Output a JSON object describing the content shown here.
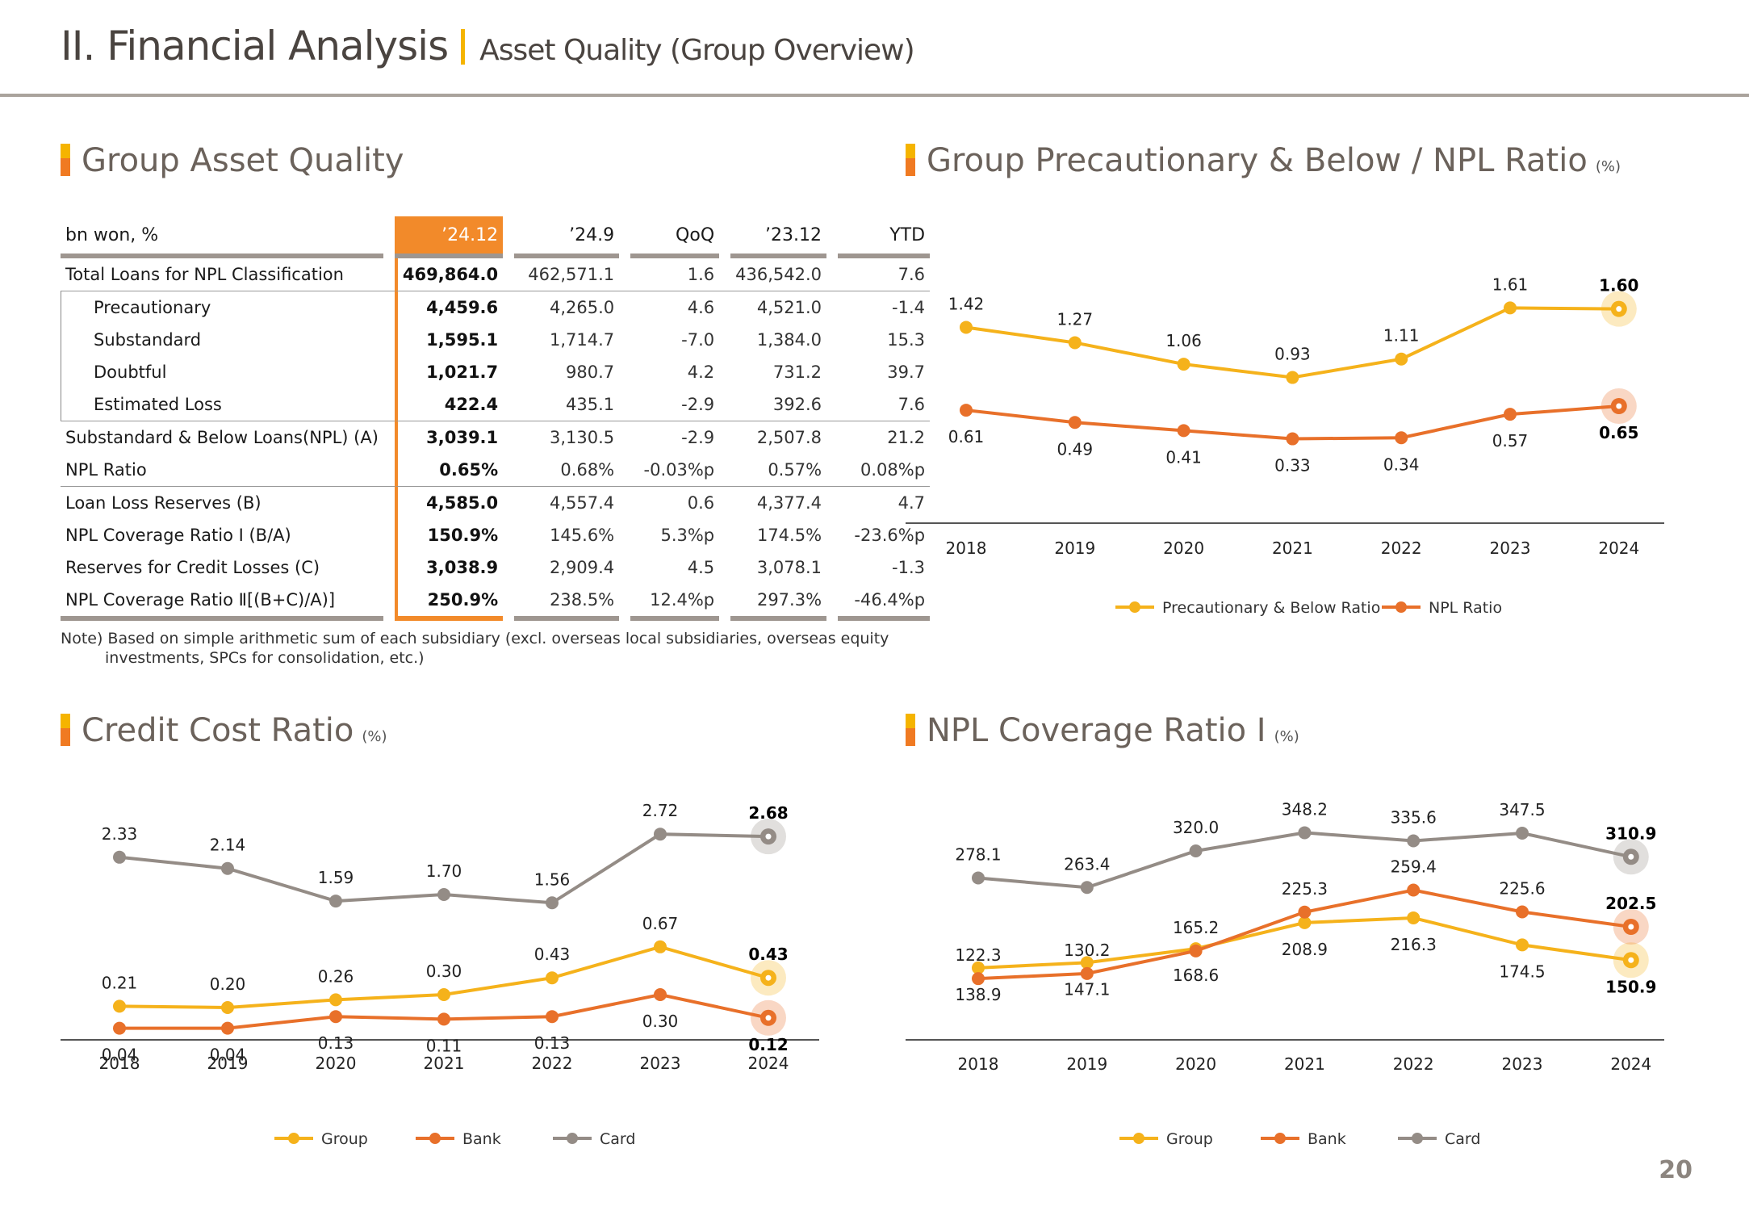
{
  "header": {
    "title": "II. Financial Analysis",
    "subtitle": "Asset Quality (Group Overview)"
  },
  "sections": {
    "asset_quality": "Group Asset Quality",
    "prec_npl": "Group Precautionary & Below / NPL Ratio",
    "prec_npl_unit": "(%)",
    "credit_cost": "Credit Cost Ratio",
    "credit_cost_unit": "(%)",
    "npl_coverage": "NPL Coverage Ratio I",
    "npl_coverage_unit": "(%)"
  },
  "table": {
    "columns": [
      "bn won, %",
      "’24.12",
      "’24.9",
      "QoQ",
      "’23.12",
      "YTD"
    ],
    "rows": [
      {
        "label": "Total Loans for NPL Classification",
        "values": [
          "469,864.0",
          "462,571.1",
          "1.6",
          "436,542.0",
          "7.6"
        ]
      },
      {
        "label": "Precautionary",
        "values": [
          "4,459.6",
          "4,265.0",
          "4.6",
          "4,521.0",
          "-1.4"
        ]
      },
      {
        "label": "Substandard",
        "values": [
          "1,595.1",
          "1,714.7",
          "-7.0",
          "1,384.0",
          "15.3"
        ]
      },
      {
        "label": "Doubtful",
        "values": [
          "1,021.7",
          "980.7",
          "4.2",
          "731.2",
          "39.7"
        ]
      },
      {
        "label": "Estimated Loss",
        "values": [
          "422.4",
          "435.1",
          "-2.9",
          "392.6",
          "7.6"
        ]
      },
      {
        "label": "Substandard & Below Loans(NPL) (A)",
        "values": [
          "3,039.1",
          "3,130.5",
          "-2.9",
          "2,507.8",
          "21.2"
        ]
      },
      {
        "label": "NPL Ratio",
        "values": [
          "0.65%",
          "0.68%",
          "-0.03%p",
          "0.57%",
          "0.08%p"
        ]
      },
      {
        "label": "Loan Loss Reserves (B)",
        "values": [
          "4,585.0",
          "4,557.4",
          "0.6",
          "4,377.4",
          "4.7"
        ]
      },
      {
        "label": "NPL Coverage Ratio Ⅰ (B/A)",
        "values": [
          "150.9%",
          "145.6%",
          "5.3%p",
          "174.5%",
          "-23.6%p"
        ]
      },
      {
        "label": "Reserves for Credit Losses (C)",
        "values": [
          "3,038.9",
          "2,909.4",
          "4.5",
          "3,078.1",
          "-1.3"
        ]
      },
      {
        "label": "NPL Coverage Ratio Ⅱ[(B+C)/A)]",
        "values": [
          "250.9%",
          "238.5%",
          "12.4%p",
          "297.3%",
          "-46.4%p"
        ]
      }
    ],
    "note_line1": "Note) Based on simple arithmetic sum of each subsidiary (excl. overseas local subsidiaries, overseas equity",
    "note_line2": "investments, SPCs for consolidation, etc.)"
  },
  "colors": {
    "group": "#f5b21b",
    "bank": "#e8702a",
    "card": "#948c86",
    "highlight": "#f28a2a"
  },
  "chart_data": [
    {
      "type": "line",
      "title": "Group Precautionary & Below / NPL Ratio",
      "unit": "%",
      "x": [
        "2018",
        "2019",
        "2020",
        "2021",
        "2022",
        "2023",
        "2024"
      ],
      "series": [
        {
          "name": "Precautionary & Below Ratio",
          "color_key": "group",
          "values": [
            1.42,
            1.27,
            1.06,
            0.93,
            1.11,
            1.61,
            1.6
          ],
          "labels": [
            "1.42",
            "1.27",
            "1.06",
            "0.93",
            "1.11",
            "1.61",
            "1.60"
          ],
          "label_pos": "above"
        },
        {
          "name": "NPL Ratio",
          "color_key": "bank",
          "values": [
            0.61,
            0.49,
            0.41,
            0.33,
            0.34,
            0.57,
            0.65
          ],
          "labels": [
            "0.61",
            "0.49",
            "0.41",
            "0.33",
            "0.34",
            "0.57",
            "0.65"
          ],
          "label_pos": "below"
        }
      ],
      "legend": "bottom-center",
      "grid": false
    },
    {
      "type": "line",
      "title": "Credit Cost Ratio",
      "unit": "%",
      "x": [
        "2018",
        "2019",
        "2020",
        "2021",
        "2022",
        "2023",
        "2024"
      ],
      "series": [
        {
          "name": "Group",
          "color_key": "group",
          "values": [
            0.21,
            0.2,
            0.26,
            0.3,
            0.43,
            0.67,
            0.43
          ],
          "labels": [
            "0.21",
            "0.20",
            "0.26",
            "0.30",
            "0.43",
            "0.67",
            "0.43"
          ],
          "label_pos": "above"
        },
        {
          "name": "Bank",
          "color_key": "bank",
          "values": [
            0.04,
            0.04,
            0.13,
            0.11,
            0.13,
            0.3,
            0.12
          ],
          "labels": [
            "0.04",
            "0.04",
            "0.13",
            "0.11",
            "0.13",
            "0.30",
            "0.12"
          ],
          "label_pos": "below"
        },
        {
          "name": "Card",
          "color_key": "card",
          "values": [
            2.33,
            2.14,
            1.59,
            1.7,
            1.56,
            2.72,
            2.68
          ],
          "labels": [
            "2.33",
            "2.14",
            "1.59",
            "1.70",
            "1.56",
            "2.72",
            "2.68"
          ],
          "label_pos": "above"
        }
      ],
      "legend": "bottom-center",
      "grid": false
    },
    {
      "type": "line",
      "title": "NPL Coverage Ratio I",
      "unit": "%",
      "x": [
        "2018",
        "2019",
        "2020",
        "2021",
        "2022",
        "2023",
        "2024"
      ],
      "series": [
        {
          "name": "Group",
          "color_key": "group",
          "values": [
            138.9,
            147.1,
            168.6,
            208.9,
            216.3,
            174.5,
            150.9
          ],
          "labels": [
            "138.9",
            "147.1",
            "168.6",
            "208.9",
            "216.3",
            "174.5",
            "150.9"
          ],
          "label_pos": "below"
        },
        {
          "name": "Bank",
          "color_key": "bank",
          "values": [
            122.3,
            130.2,
            165.2,
            225.3,
            259.4,
            225.6,
            202.5
          ],
          "labels": [
            "122.3",
            "130.2",
            "165.2",
            "225.3",
            "259.4",
            "225.6",
            "202.5"
          ],
          "label_pos": "above"
        },
        {
          "name": "Card",
          "color_key": "card",
          "values": [
            278.1,
            263.4,
            320.0,
            348.2,
            335.6,
            347.5,
            310.9
          ],
          "labels": [
            "278.1",
            "263.4",
            "320.0",
            "348.2",
            "335.6",
            "347.5",
            "310.9"
          ],
          "label_pos": "above"
        }
      ],
      "legend": "bottom-center",
      "grid": false
    }
  ],
  "page_number": "20"
}
